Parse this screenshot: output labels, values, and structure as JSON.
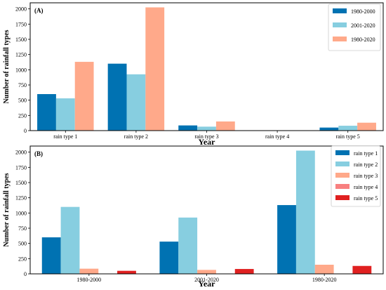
{
  "chart_data": [
    {
      "type": "bar",
      "panel_label": "(A)",
      "categories": [
        "rain type 1",
        "rain type 2",
        "rain type 3",
        "rain type 4",
        "rain type 5"
      ],
      "series": [
        {
          "name": "1980-2000",
          "color": "#0072B2",
          "values": [
            600,
            1100,
            85,
            0,
            50
          ]
        },
        {
          "name": "2001-2020",
          "color": "#87CEE0",
          "values": [
            530,
            925,
            65,
            0,
            80
          ]
        },
        {
          "name": "1980-2020",
          "color": "#FFA98A",
          "values": [
            1130,
            2025,
            150,
            0,
            130
          ]
        }
      ],
      "xlabel": "Year",
      "ylabel": "Number of rainfall types",
      "ylim": [
        0,
        2100
      ],
      "yticks": [
        0,
        250,
        500,
        750,
        1000,
        1250,
        1500,
        1750,
        2000
      ],
      "legend": "top-right"
    },
    {
      "type": "bar",
      "panel_label": "(B)",
      "categories": [
        "1980-2000",
        "2001-2020",
        "1980-2020"
      ],
      "series": [
        {
          "name": "rain type 1",
          "color": "#0072B2",
          "values": [
            600,
            530,
            1130
          ]
        },
        {
          "name": "rain type 2",
          "color": "#87CEE0",
          "values": [
            1100,
            925,
            2025
          ]
        },
        {
          "name": "rain type 3",
          "color": "#FFA98A",
          "values": [
            85,
            65,
            150
          ]
        },
        {
          "name": "rain type 4",
          "color": "#F88080",
          "values": [
            0,
            0,
            0
          ]
        },
        {
          "name": "rain type 5",
          "color": "#E02020",
          "values": [
            50,
            80,
            130
          ]
        }
      ],
      "xlabel": "Year",
      "ylabel": "Number of rainfall types",
      "ylim": [
        0,
        2100
      ],
      "yticks": [
        0,
        250,
        500,
        750,
        1000,
        1250,
        1500,
        1750,
        2000
      ],
      "legend": "top-right"
    }
  ]
}
